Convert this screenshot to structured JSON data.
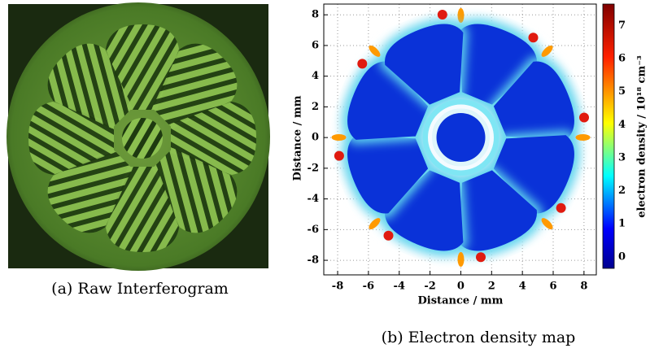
{
  "figure": {
    "panel_a": {
      "caption": "(a) Raw Interferogram"
    },
    "panel_b": {
      "caption": "(b) Electron density map",
      "x_label": "Distance / mm",
      "y_label": "Distance / mm",
      "xlim": [
        -8.9,
        8.8
      ],
      "ylim": [
        -8.95,
        8.7
      ],
      "xticks": [
        -8,
        -6,
        -4,
        -2,
        0,
        2,
        4,
        6,
        8
      ],
      "yticks": [
        -8,
        -6,
        -4,
        -2,
        0,
        2,
        4,
        6,
        8
      ],
      "grid": true,
      "colorbar": {
        "label": "electron density / 10¹⁸ cm⁻³",
        "lim": [
          -0.35,
          7.65
        ],
        "ticks": [
          0,
          1,
          2,
          3,
          4,
          5,
          6,
          7
        ]
      }
    }
  }
}
